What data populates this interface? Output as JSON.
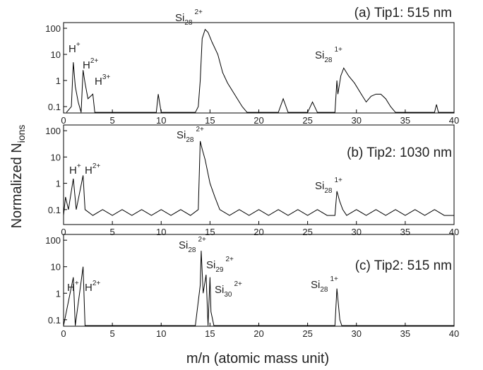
{
  "chart_data": [
    {
      "type": "line",
      "title": "(a) Tip1: 515 nm",
      "color": "#000000",
      "ylabel": "Normalized N",
      "ylabel_sub": "ions",
      "x": [
        0.3,
        0.8,
        1.0,
        1.2,
        1.5,
        1.8,
        2.0,
        2.2,
        2.5,
        3.0,
        3.2,
        9.5,
        9.7,
        10,
        13.5,
        13.8,
        14.0,
        14.2,
        14.5,
        14.8,
        15.2,
        15.8,
        16.3,
        16.8,
        17.3,
        17.8,
        18.3,
        18.8,
        22,
        22.5,
        23,
        25,
        25.5,
        26,
        27.8,
        28,
        28.1,
        28.4,
        28.7,
        29.2,
        29.8,
        30.5,
        31,
        31.5,
        32,
        32.5,
        33,
        33.5,
        34,
        38,
        38.2,
        38.4,
        40
      ],
      "values": [
        0.06,
        0.1,
        5,
        0.6,
        0.15,
        0.06,
        2.5,
        0.8,
        0.2,
        0.3,
        0.06,
        0.06,
        0.3,
        0.06,
        0.06,
        0.1,
        1,
        40,
        90,
        70,
        30,
        10,
        2,
        0.8,
        0.4,
        0.2,
        0.1,
        0.06,
        0.06,
        0.2,
        0.06,
        0.06,
        0.15,
        0.06,
        0.06,
        1,
        0.3,
        1.5,
        3,
        1.5,
        0.8,
        0.3,
        0.15,
        0.25,
        0.3,
        0.3,
        0.2,
        0.1,
        0.06,
        0.06,
        0.12,
        0.06,
        0.06
      ],
      "xlim": [
        0,
        40
      ],
      "xticks": [
        0,
        5,
        10,
        15,
        20,
        25,
        30,
        35,
        40
      ],
      "ylim": [
        0.057,
        165
      ],
      "yticks": [
        0.1,
        1,
        10,
        100
      ],
      "log_y": true,
      "annotations": [
        {
          "text": "H",
          "sup": "+"
        },
        {
          "text": "H",
          "sup": "2+"
        },
        {
          "text": "H",
          "sup": "3+"
        },
        {
          "text": "Si",
          "sub": "28",
          "sup": "2+"
        },
        {
          "text": "Si",
          "sub": "28",
          "sup": "1+"
        }
      ]
    },
    {
      "type": "line",
      "title": "(b) Tip2: 1030 nm",
      "color": "#000000",
      "x": [
        0,
        0.2,
        0.5,
        1,
        1.3,
        2,
        2.2,
        3,
        4,
        5,
        6,
        7,
        8,
        9,
        10,
        11,
        12,
        13,
        13.8,
        14,
        14.2,
        14.5,
        15,
        15.5,
        16,
        17,
        18,
        19,
        20,
        21,
        22,
        23,
        24,
        25,
        26,
        27,
        27.8,
        28,
        28.3,
        28.6,
        29,
        30,
        31,
        32,
        33,
        34,
        35,
        36,
        37,
        38,
        39,
        40
      ],
      "values": [
        0.06,
        0.3,
        0.1,
        1.5,
        0.1,
        2,
        0.1,
        0.06,
        0.1,
        0.06,
        0.1,
        0.06,
        0.1,
        0.06,
        0.1,
        0.06,
        0.1,
        0.06,
        0.1,
        40,
        20,
        8,
        1,
        0.3,
        0.1,
        0.06,
        0.1,
        0.06,
        0.1,
        0.06,
        0.1,
        0.06,
        0.1,
        0.06,
        0.1,
        0.06,
        0.06,
        0.5,
        0.2,
        0.1,
        0.06,
        0.1,
        0.06,
        0.1,
        0.06,
        0.1,
        0.06,
        0.1,
        0.06,
        0.1,
        0.06,
        0.06
      ],
      "xlim": [
        0,
        40
      ],
      "xticks": [
        0,
        5,
        10,
        15,
        20,
        25,
        30,
        35,
        40
      ],
      "ylim": [
        0.027,
        165
      ],
      "yticks": [
        0.1,
        1,
        10,
        100
      ],
      "log_y": true,
      "annotations": [
        {
          "text": "H",
          "sup": "+"
        },
        {
          "text": "H",
          "sup": "2+"
        },
        {
          "text": "Si",
          "sub": "28",
          "sup": "2+"
        },
        {
          "text": "Si",
          "sub": "28",
          "sup": "1+"
        }
      ]
    },
    {
      "type": "line",
      "title": "(c) Tip2: 515 nm",
      "color": "#000000",
      "xlabel": "m/n (atomic mass unit)",
      "x": [
        0,
        1,
        1.2,
        2,
        2.2,
        13.5,
        14,
        14.1,
        14.3,
        14.6,
        14.8,
        15,
        15.1,
        15.4,
        27.8,
        28,
        28.3,
        28.5,
        40
      ],
      "values": [
        0.06,
        4,
        0.06,
        10,
        0.06,
        0.06,
        2,
        40,
        1,
        5,
        0.06,
        4,
        0.2,
        0.06,
        0.06,
        1.5,
        0.1,
        0.06,
        0.06
      ],
      "xlim": [
        0,
        40
      ],
      "xticks": [
        0,
        5,
        10,
        15,
        20,
        25,
        30,
        35,
        40
      ],
      "ylim": [
        0.057,
        165
      ],
      "yticks": [
        0.1,
        1,
        10,
        100
      ],
      "log_y": true,
      "annotations": [
        {
          "text": "H",
          "sup": "+"
        },
        {
          "text": "H",
          "sup": "2+"
        },
        {
          "text": "Si",
          "sub": "28",
          "sup": "2+"
        },
        {
          "text": "Si",
          "sub": "29",
          "sup": "2+"
        },
        {
          "text": "Si",
          "sub": "30",
          "sup": "2+"
        },
        {
          "text": "Si",
          "sub": "28",
          "sup": "1+"
        }
      ]
    }
  ]
}
